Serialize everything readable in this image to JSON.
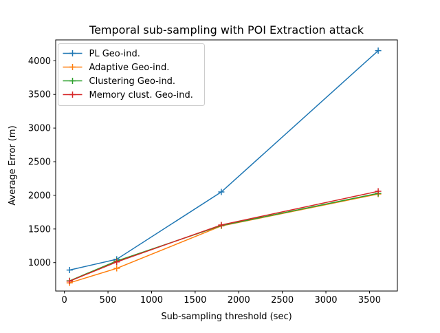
{
  "window": {
    "background": "#ffffff"
  },
  "chart_data": {
    "type": "line",
    "title": "Temporal sub-sampling with POI Extraction attack",
    "xlabel": "Sub-sampling threshold (sec)",
    "ylabel": "Average Error (m)",
    "x": [
      60,
      600,
      1800,
      3600
    ],
    "series": [
      {
        "name": "PL Geo-ind.",
        "color": "#1f77b4",
        "values": [
          890,
          1050,
          2050,
          4150
        ]
      },
      {
        "name": "Adaptive Geo-ind.",
        "color": "#ff7f0e",
        "values": [
          700,
          915,
          1545,
          2020
        ]
      },
      {
        "name": "Clustering Geo-ind.",
        "color": "#2ca02c",
        "values": [
          730,
          1025,
          1550,
          2030
        ]
      },
      {
        "name": "Memory clust. Geo-ind.",
        "color": "#d62728",
        "values": [
          725,
          1010,
          1560,
          2060
        ]
      }
    ],
    "xticks": [
      0,
      500,
      1000,
      1500,
      2000,
      2500,
      3000,
      3500
    ],
    "yticks": [
      1000,
      1500,
      2000,
      2500,
      3000,
      3500,
      4000
    ],
    "xlim": [
      -100,
      3820
    ],
    "ylim": [
      578,
      4310
    ],
    "marker": "plus",
    "marker_half_size": 4.5,
    "line_width": 1.5,
    "grid": false,
    "legend_position": "upper left",
    "spine_color": "#000000",
    "background": "#ffffff"
  }
}
